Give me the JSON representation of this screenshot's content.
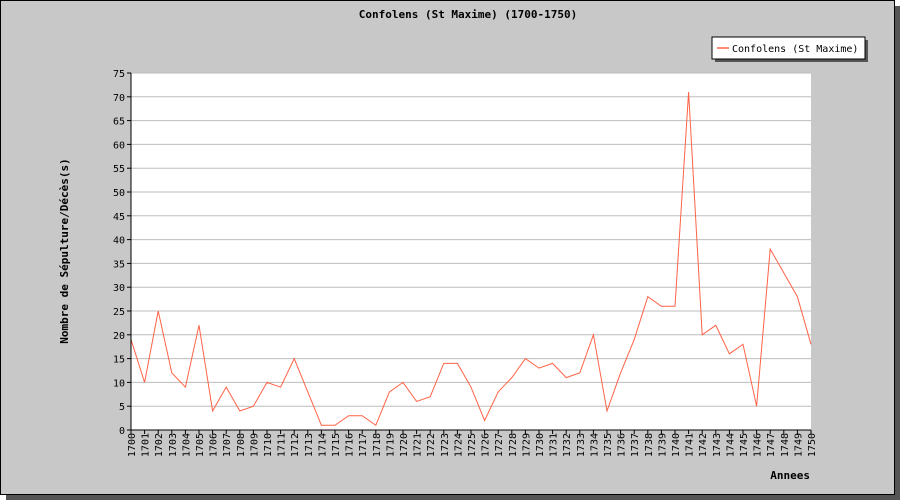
{
  "chart_data": {
    "type": "line",
    "title": "Confolens (St Maxime) (1700-1750)",
    "xlabel": "Annees",
    "ylabel": "Nombre de Sépulture/Décès(s)",
    "ylim": [
      0,
      75
    ],
    "yticks": [
      0,
      5,
      10,
      15,
      20,
      25,
      30,
      35,
      40,
      45,
      50,
      55,
      60,
      65,
      70,
      75
    ],
    "grid": true,
    "legend_position": "top-right",
    "series": [
      {
        "name": "Confolens (St Maxime)",
        "color": "#ff6347",
        "points": [
          {
            "x": "1700",
            "y": 19
          },
          {
            "x": "1701",
            "y": 10
          },
          {
            "x": "1702",
            "y": 25
          },
          {
            "x": "1703",
            "y": 12
          },
          {
            "x": "1704",
            "y": 9
          },
          {
            "x": "1705",
            "y": 22
          },
          {
            "x": "1706",
            "y": 4
          },
          {
            "x": "1707",
            "y": 9
          },
          {
            "x": "1708",
            "y": 4
          },
          {
            "x": "1709",
            "y": 5
          },
          {
            "x": "1710",
            "y": 10
          },
          {
            "x": "1711",
            "y": 9
          },
          {
            "x": "1712",
            "y": 15
          },
          {
            "x": "1713",
            "y": 8
          },
          {
            "x": "1714",
            "y": 1
          },
          {
            "x": "1715",
            "y": 1
          },
          {
            "x": "1716",
            "y": 3
          },
          {
            "x": "1717",
            "y": 3
          },
          {
            "x": "1718",
            "y": 1
          },
          {
            "x": "1719",
            "y": 8
          },
          {
            "x": "1720",
            "y": 10
          },
          {
            "x": "1721",
            "y": 6
          },
          {
            "x": "1722",
            "y": 7
          },
          {
            "x": "1723",
            "y": 14
          },
          {
            "x": "1724",
            "y": 14
          },
          {
            "x": "1725",
            "y": 9
          },
          {
            "x": "1726",
            "y": 2
          },
          {
            "x": "1727",
            "y": 8
          },
          {
            "x": "1728",
            "y": 11
          },
          {
            "x": "1729",
            "y": 15
          },
          {
            "x": "1730",
            "y": 13
          },
          {
            "x": "1731",
            "y": 14
          },
          {
            "x": "1732",
            "y": 11
          },
          {
            "x": "1733",
            "y": 12
          },
          {
            "x": "1734",
            "y": 20
          },
          {
            "x": "1735",
            "y": 4
          },
          {
            "x": "1736",
            "y": 12
          },
          {
            "x": "1737",
            "y": 19
          },
          {
            "x": "1738",
            "y": 28
          },
          {
            "x": "1739",
            "y": 26
          },
          {
            "x": "1740",
            "y": 26
          },
          {
            "x": "1741",
            "y": 71
          },
          {
            "x": "1742",
            "y": 20
          },
          {
            "x": "1743",
            "y": 22
          },
          {
            "x": "1744",
            "y": 16
          },
          {
            "x": "1745",
            "y": 18
          },
          {
            "x": "1746",
            "y": 5
          },
          {
            "x": "1747",
            "y": 38
          },
          {
            "x": "1748",
            "y": 33
          },
          {
            "x": "1749",
            "y": 28
          },
          {
            "x": "1750",
            "y": 18
          }
        ]
      }
    ]
  }
}
